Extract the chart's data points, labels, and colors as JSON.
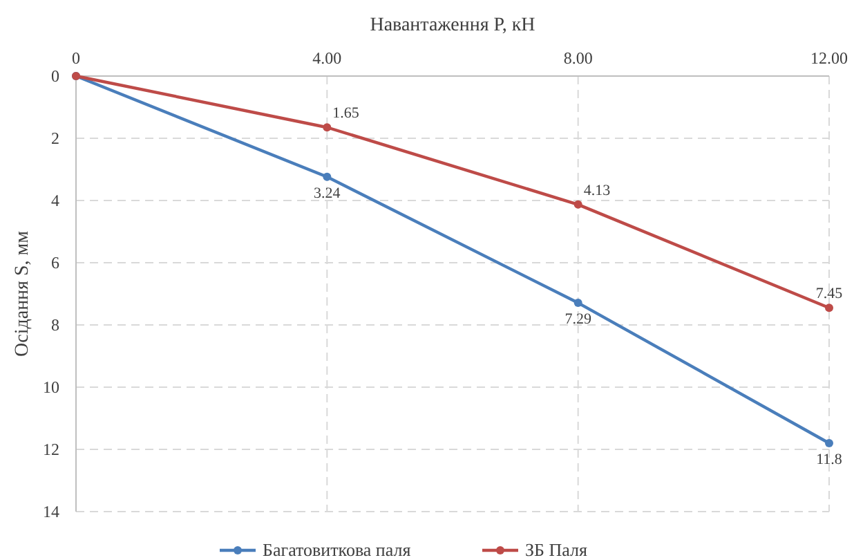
{
  "chart_data": {
    "type": "line",
    "xlabel": "Навантаження Р, кН",
    "ylabel": "Осідання S, мм",
    "x": [
      0,
      4,
      8,
      12
    ],
    "xlim": [
      0,
      12
    ],
    "xticks": [
      0,
      {
        "value": 4,
        "label": "4.00"
      },
      {
        "value": 8,
        "label": "8.00"
      },
      {
        "value": 12,
        "label": "12.00"
      }
    ],
    "ylim": [
      14,
      0
    ],
    "yticks": [
      0,
      2,
      4,
      6,
      8,
      10,
      12,
      14
    ],
    "series": [
      {
        "name": "Багатовиткова паля",
        "color": "#4a7ebb",
        "values": [
          0,
          3.24,
          7.29,
          11.8
        ],
        "value_labels": [
          null,
          "3.24",
          "7.29",
          "11.8"
        ]
      },
      {
        "name": "ЗБ Паля",
        "color": "#be4b48",
        "values": [
          0,
          1.65,
          4.13,
          7.45
        ],
        "value_labels": [
          null,
          "1.65",
          "4.13",
          "7.45"
        ]
      }
    ],
    "grid": true,
    "legend": "bottom",
    "marker": "circle",
    "line_style": "solid"
  }
}
